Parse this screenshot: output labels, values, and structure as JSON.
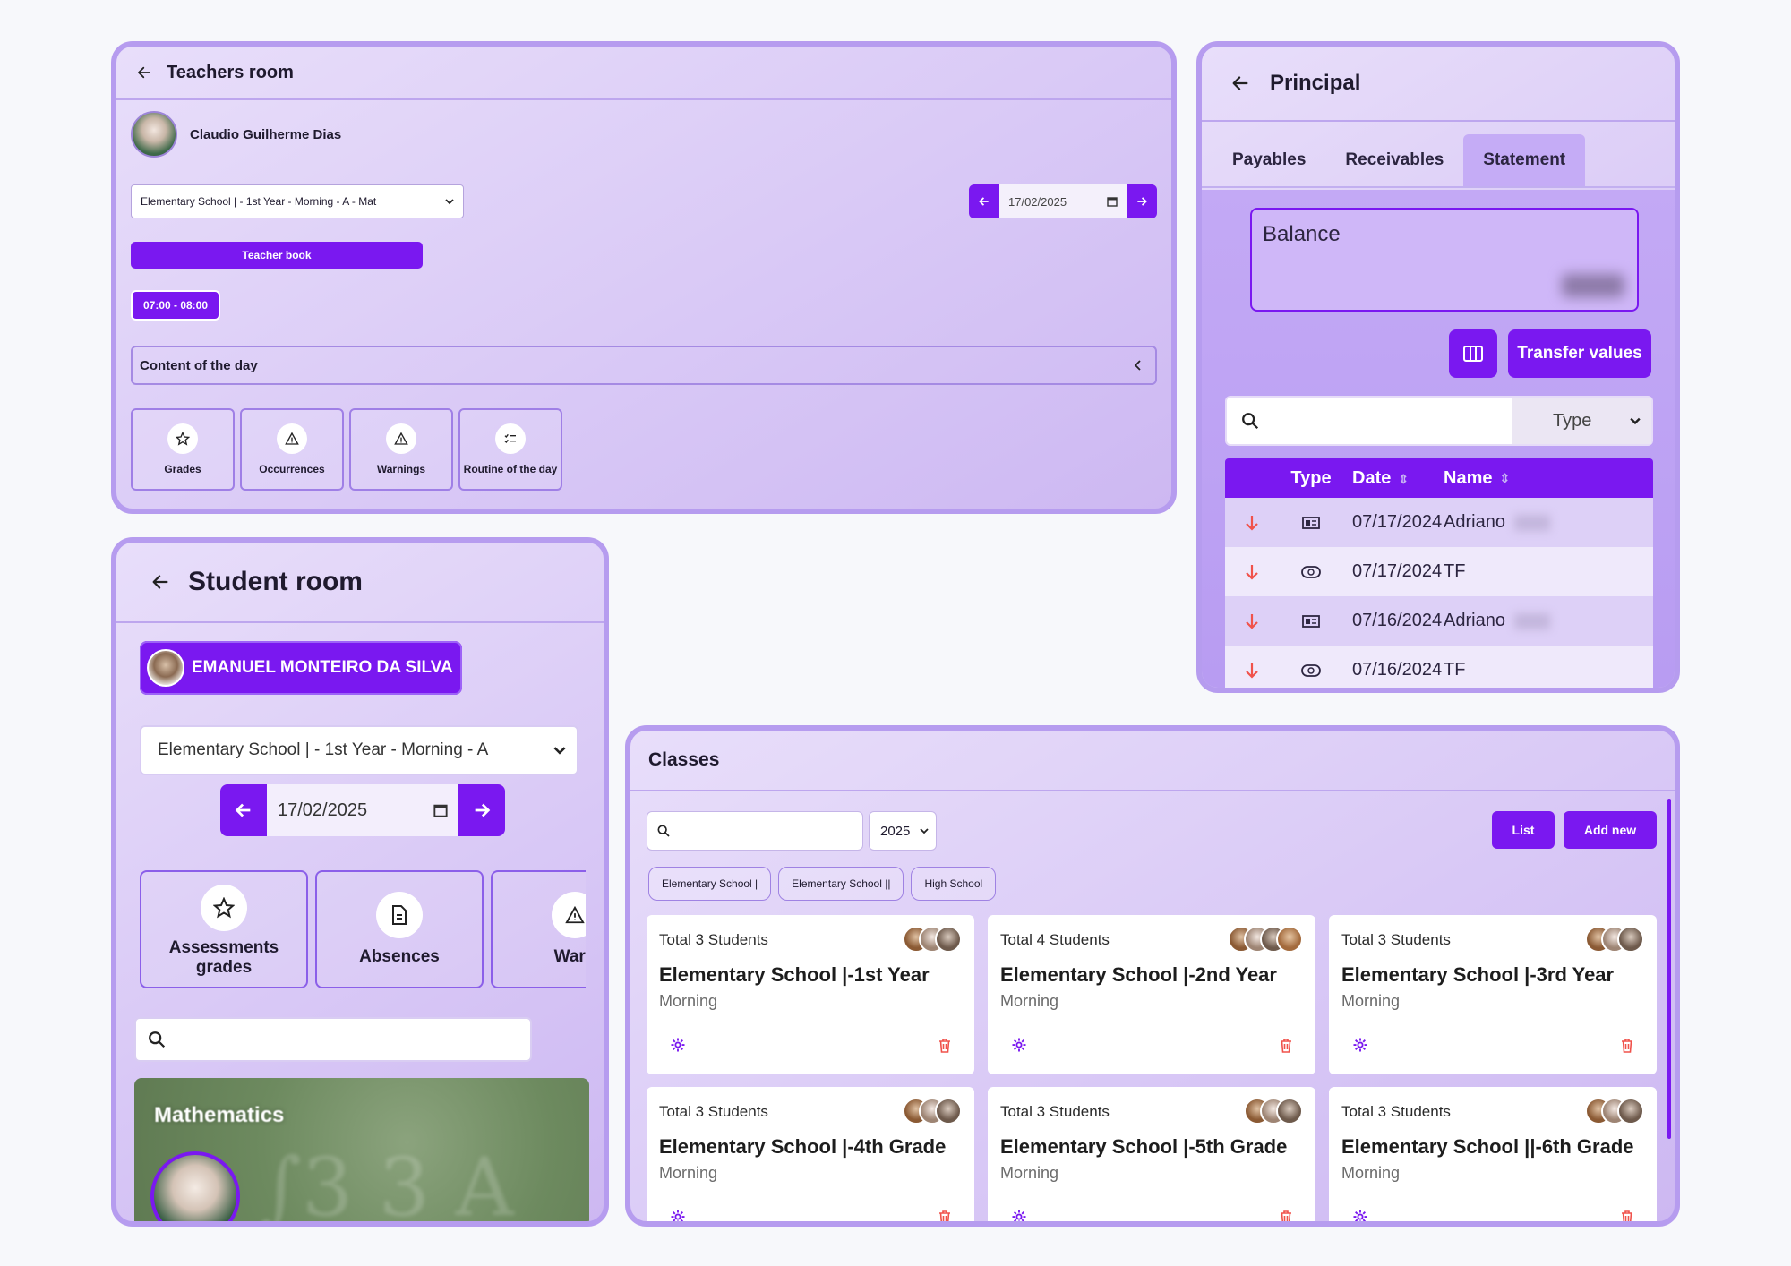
{
  "teachers_room": {
    "title": "Teachers room",
    "teacher_name": "Claudio Guilherme Dias",
    "class_select": "Elementary School | - 1st Year - Morning - A - Mat",
    "date": "17/02/2025",
    "teacher_book": "Teacher book",
    "time_slot": "07:00 - 08:00",
    "content_of_day": "Content of the day",
    "cards": [
      "Grades",
      "Occurrences",
      "Warnings",
      "Routine of the day"
    ]
  },
  "principal": {
    "title": "Principal",
    "tabs": [
      "Payables",
      "Receivables",
      "Statement"
    ],
    "active_tab": "Statement",
    "balance_label": "Balance",
    "transfer_button": "Transfer values",
    "type_filter": "Type",
    "table": {
      "columns": [
        "Type",
        "Date",
        "Name"
      ],
      "rows": [
        {
          "date": "07/17/2024",
          "name": "Adriano",
          "type_icon": "bill-icon"
        },
        {
          "date": "07/17/2024",
          "name": "TF",
          "type_icon": "coin-icon"
        },
        {
          "date": "07/16/2024",
          "name": "Adriano",
          "type_icon": "bill-icon"
        },
        {
          "date": "07/16/2024",
          "name": "TF",
          "type_icon": "coin-icon"
        }
      ]
    },
    "colors": {
      "accent": "#7a18f0",
      "outflow": "#f0524b"
    }
  },
  "student_room": {
    "title": "Student room",
    "student_name": "EMANUEL MONTEIRO DA SILVA",
    "class_select": "Elementary School | - 1st Year - Morning - A",
    "date": "17/02/2025",
    "cards": [
      "Assessments grades",
      "Absences",
      "Warn"
    ],
    "subject": "Mathematics"
  },
  "classes": {
    "title": "Classes",
    "year": "2025",
    "list_button": "List",
    "add_button": "Add new",
    "chips": [
      "Elementary School |",
      "Elementary School ||",
      "High School"
    ],
    "cards": [
      {
        "total": "Total 3 Students",
        "name": "Elementary School |-1st Year",
        "shift": "Morning"
      },
      {
        "total": "Total 4 Students",
        "name": "Elementary School |-2nd Year",
        "shift": "Morning"
      },
      {
        "total": "Total 3 Students",
        "name": "Elementary School |-3rd Year",
        "shift": "Morning"
      },
      {
        "total": "Total 3 Students",
        "name": "Elementary School |-4th Grade",
        "shift": "Morning"
      },
      {
        "total": "Total 3 Students",
        "name": "Elementary School |-5th Grade",
        "shift": "Morning"
      },
      {
        "total": "Total 3 Students",
        "name": "Elementary School ||-6th Grade",
        "shift": "Morning"
      }
    ]
  }
}
